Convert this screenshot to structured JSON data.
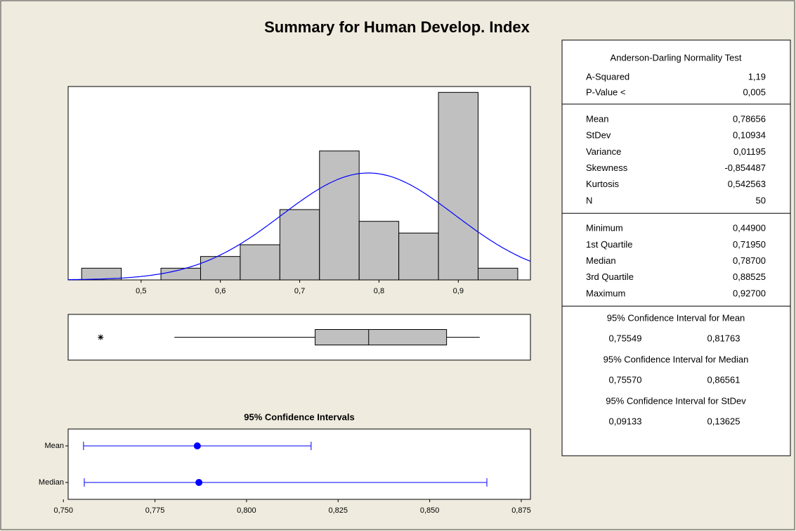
{
  "title": "Summary for Human Develop. Index",
  "chart_data": [
    {
      "type": "histogram",
      "bins": [
        0.425,
        0.475,
        0.525,
        0.575,
        0.625,
        0.675,
        0.725,
        0.775,
        0.825,
        0.875,
        0.925,
        0.975
      ],
      "counts": [
        1,
        0,
        1,
        2,
        3,
        6,
        11,
        5,
        4,
        16,
        1
      ],
      "color": "#c0c0c0",
      "curve_color": "#0000ff",
      "xlim": [
        0.408,
        0.991
      ],
      "ylim": [
        0,
        16.5
      ],
      "xticks": [
        {
          "value": 0.5,
          "label": "0,5"
        },
        {
          "value": 0.6,
          "label": "0,6"
        },
        {
          "value": 0.7,
          "label": "0,7"
        },
        {
          "value": 0.8,
          "label": "0,8"
        },
        {
          "value": 0.9,
          "label": "0,9"
        }
      ]
    },
    {
      "type": "box",
      "xlim": [
        0.408,
        0.991
      ],
      "color": "#c0c0c0",
      "whisker_low": 0.542,
      "q1": 0.7195,
      "median": 0.787,
      "q3": 0.88525,
      "whisker_high": 0.927,
      "outliers": [
        0.449
      ]
    },
    {
      "type": "interval",
      "title": "95% Confidence Intervals",
      "categories": [
        "Mean",
        "Median"
      ],
      "estimates": [
        0.78656,
        0.787
      ],
      "lower": [
        0.75549,
        0.7557
      ],
      "upper": [
        0.81763,
        0.86561
      ],
      "color": "#0000ff",
      "xlim": [
        0.7513,
        0.8775
      ],
      "xticks": [
        {
          "value": 0.75,
          "label": "0,750"
        },
        {
          "value": 0.775,
          "label": "0,775"
        },
        {
          "value": 0.8,
          "label": "0,800"
        },
        {
          "value": 0.825,
          "label": "0,825"
        },
        {
          "value": 0.85,
          "label": "0,850"
        },
        {
          "value": 0.875,
          "label": "0,875"
        }
      ]
    }
  ],
  "stats": {
    "sections": [
      {
        "title": "Anderson-Darling Normality Test",
        "rows": [
          [
            "A-Squared",
            {
              "value": 1.19,
              "label": "1,19"
            }
          ],
          [
            "P-Value <",
            {
              "value": 0.005,
              "label": "0,005"
            }
          ]
        ]
      },
      {
        "rows": [
          [
            "Mean",
            {
              "value": 0.78656,
              "label": "0,78656"
            }
          ],
          [
            "StDev",
            {
              "value": 0.10934,
              "label": "0,10934"
            }
          ],
          [
            "Variance",
            {
              "value": 0.01195,
              "label": "0,01195"
            }
          ],
          [
            "Skewness",
            {
              "value": -0.854487,
              "label": "-0,854487"
            }
          ],
          [
            "Kurtosis",
            {
              "value": 0.542563,
              "label": "0,542563"
            }
          ],
          [
            "N",
            50
          ]
        ]
      },
      {
        "rows": [
          [
            "Minimum",
            {
              "value": 0.449,
              "label": "0,44900"
            }
          ],
          [
            "1st Quartile",
            {
              "value": 0.7195,
              "label": "0,71950"
            }
          ],
          [
            "Median",
            {
              "value": 0.787,
              "label": "0,78700"
            }
          ],
          [
            "3rd Quartile",
            {
              "value": 0.88525,
              "label": "0,88525"
            }
          ],
          [
            "Maximum",
            {
              "value": 0.927,
              "label": "0,92700"
            }
          ]
        ]
      }
    ],
    "intervals": [
      {
        "title": "95% Confidence Interval for Mean",
        "values": [
          {
            "value": 0.75549,
            "label": "0,75549"
          },
          {
            "value": 0.81763,
            "label": "0,81763"
          }
        ]
      },
      {
        "title": "95% Confidence Interval for Median",
        "values": [
          {
            "value": 0.7557,
            "label": "0,75570"
          },
          {
            "value": 0.86561,
            "label": "0,86561"
          }
        ]
      },
      {
        "title": "95% Confidence Interval for StDev",
        "values": [
          {
            "value": 0.09133,
            "label": "0,09133"
          },
          {
            "value": 0.13625,
            "label": "0,13625"
          }
        ]
      }
    ]
  }
}
